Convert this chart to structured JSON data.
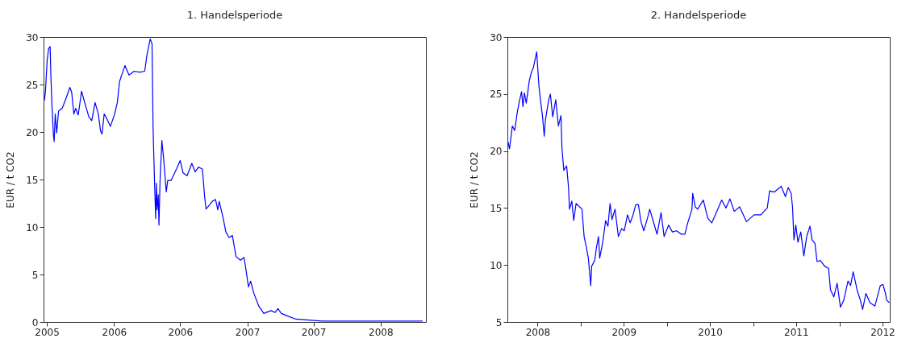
{
  "chart_data": [
    {
      "type": "line",
      "title": "1. Handelsperiode",
      "ylabel": "EUR / t CO2",
      "x": [
        "2005-06-24",
        "2005-06-27",
        "2005-07-02",
        "2005-07-06",
        "2005-07-10",
        "2005-07-12",
        "2005-07-15",
        "2005-07-19",
        "2005-07-21",
        "2005-07-24",
        "2005-07-28",
        "2005-08-02",
        "2005-08-12",
        "2005-08-23",
        "2005-09-02",
        "2005-09-07",
        "2005-09-13",
        "2005-09-18",
        "2005-09-25",
        "2005-10-04",
        "2005-10-12",
        "2005-10-24",
        "2005-11-01",
        "2005-11-10",
        "2005-11-19",
        "2005-11-25",
        "2005-11-29",
        "2005-12-05",
        "2005-12-11",
        "2005-12-22",
        "2006-01-02",
        "2006-01-10",
        "2006-01-16",
        "2006-01-21",
        "2006-01-31",
        "2006-02-11",
        "2006-02-25",
        "2006-03-12",
        "2006-03-26",
        "2006-04-01",
        "2006-04-10",
        "2006-04-15",
        "2006-04-18",
        "2006-04-22",
        "2006-04-25",
        "2006-04-27",
        "2006-04-29",
        "2006-05-02",
        "2006-05-04",
        "2006-05-07",
        "2006-05-12",
        "2006-05-17",
        "2006-05-24",
        "2006-05-28",
        "2006-06-06",
        "2006-06-21",
        "2006-07-01",
        "2006-07-09",
        "2006-07-20",
        "2006-08-02",
        "2006-08-11",
        "2006-08-20",
        "2006-08-31",
        "2006-09-06",
        "2006-09-10",
        "2006-09-19",
        "2006-09-27",
        "2006-10-06",
        "2006-10-12",
        "2006-10-16",
        "2006-10-27",
        "2006-11-03",
        "2006-11-12",
        "2006-11-21",
        "2006-12-01",
        "2006-12-13",
        "2006-12-23",
        "2006-12-29",
        "2007-01-04",
        "2007-01-10",
        "2007-01-19",
        "2007-02-01",
        "2007-02-15",
        "2007-03-07",
        "2007-03-18",
        "2007-03-26",
        "2007-04-04",
        "2007-04-23",
        "2007-05-14",
        "2007-06-19",
        "2007-07-25",
        "2008-04-25"
      ],
      "series": [
        {
          "color": "#0000ff",
          "values": [
            23.3,
            24.2,
            27.6,
            28.8,
            29.0,
            25.9,
            22.8,
            19.7,
            19.0,
            21.9,
            19.9,
            22.2,
            22.5,
            23.6,
            24.7,
            24.2,
            21.9,
            22.5,
            21.8,
            24.3,
            23.2,
            21.6,
            21.2,
            23.1,
            21.9,
            20.1,
            19.8,
            21.9,
            21.5,
            20.6,
            21.8,
            23.1,
            25.3,
            25.9,
            27.0,
            26.0,
            26.4,
            26.3,
            26.4,
            28.1,
            29.8,
            29.3,
            20.2,
            14.6,
            10.9,
            14.6,
            11.8,
            13.4,
            10.2,
            14.9,
            19.1,
            17.1,
            13.7,
            14.9,
            14.9,
            16.1,
            17.0,
            15.7,
            15.4,
            16.7,
            15.8,
            16.3,
            16.1,
            13.2,
            11.9,
            12.3,
            12.7,
            12.9,
            11.8,
            12.7,
            10.9,
            9.5,
            8.9,
            9.1,
            6.9,
            6.5,
            6.8,
            5.3,
            3.7,
            4.3,
            3.0,
            1.7,
            0.9,
            1.2,
            1.0,
            1.4,
            0.9,
            0.6,
            0.3,
            0.2,
            0.1,
            0.1
          ]
        }
      ],
      "xlim": [
        "2005-06-22",
        "2008-05-04"
      ],
      "xticks": [
        {
          "value": "2005-07-01",
          "label": "2005"
        },
        {
          "value": "2006-01-01",
          "label": "2006"
        },
        {
          "value": "2006-07-01",
          "label": "2006"
        },
        {
          "value": "2007-01-01",
          "label": "2007"
        },
        {
          "value": "2007-07-01",
          "label": "2007"
        },
        {
          "value": "2008-01-01",
          "label": "2008"
        }
      ],
      "ylim": [
        0,
        30
      ],
      "yticks": [
        0,
        5,
        10,
        15,
        20,
        25,
        30
      ]
    },
    {
      "type": "line",
      "title": "2. Handelsperiode",
      "ylabel": "EUR / t CO2",
      "x": [
        "2008-02-27",
        "2008-03-04",
        "2008-03-16",
        "2008-03-26",
        "2008-04-06",
        "2008-04-15",
        "2008-04-24",
        "2008-04-30",
        "2008-05-06",
        "2008-05-14",
        "2008-05-27",
        "2008-06-06",
        "2008-06-13",
        "2008-06-27",
        "2008-07-07",
        "2008-07-13",
        "2008-07-22",
        "2008-07-29",
        "2008-08-03",
        "2008-08-17",
        "2008-08-24",
        "2008-09-03",
        "2008-09-16",
        "2008-09-27",
        "2008-10-08",
        "2008-10-12",
        "2008-10-20",
        "2008-11-01",
        "2008-11-09",
        "2008-11-13",
        "2008-11-23",
        "2008-12-01",
        "2008-12-11",
        "2009-01-05",
        "2009-01-14",
        "2009-01-24",
        "2009-02-01",
        "2009-02-11",
        "2009-02-15",
        "2009-02-28",
        "2009-03-07",
        "2009-03-16",
        "2009-03-21",
        "2009-04-03",
        "2009-04-15",
        "2009-04-25",
        "2009-05-04",
        "2009-05-12",
        "2009-05-25",
        "2009-06-08",
        "2009-06-22",
        "2009-07-03",
        "2009-07-17",
        "2009-07-28",
        "2009-08-08",
        "2009-08-21",
        "2009-09-01",
        "2009-09-12",
        "2009-09-24",
        "2009-10-12",
        "2009-10-19",
        "2009-11-02",
        "2009-11-19",
        "2009-12-06",
        "2009-12-19",
        "2010-01-07",
        "2010-01-23",
        "2010-02-10",
        "2010-03-02",
        "2010-03-17",
        "2010-03-29",
        "2010-04-16",
        "2010-04-19",
        "2010-04-30",
        "2010-05-10",
        "2010-06-03",
        "2010-06-22",
        "2010-07-09",
        "2010-07-26",
        "2010-08-20",
        "2010-09-07",
        "2010-09-24",
        "2010-10-12",
        "2010-11-04",
        "2010-12-03",
        "2011-01-04",
        "2011-02-02",
        "2011-03-01",
        "2011-03-11",
        "2011-03-31",
        "2011-04-29",
        "2011-05-17",
        "2011-05-29",
        "2011-06-10",
        "2011-06-16",
        "2011-06-22",
        "2011-06-30",
        "2011-07-09",
        "2011-07-21",
        "2011-08-03",
        "2011-08-15",
        "2011-08-29",
        "2011-09-07",
        "2011-09-19",
        "2011-09-28",
        "2011-10-12",
        "2011-10-30",
        "2011-11-16",
        "2011-11-24",
        "2011-12-08",
        "2011-12-22",
        "2012-01-05",
        "2012-01-19",
        "2012-02-06",
        "2012-02-17",
        "2012-02-28",
        "2012-03-17",
        "2012-03-28",
        "2012-04-08",
        "2012-04-22",
        "2012-05-09",
        "2012-05-30",
        "2012-06-22",
        "2012-07-03",
        "2012-07-14",
        "2012-07-19",
        "2012-07-31"
      ],
      "series": [
        {
          "color": "#0000ff",
          "values": [
            20.8,
            20.2,
            22.2,
            21.8,
            23.4,
            24.4,
            25.2,
            23.9,
            25.1,
            24.2,
            26.2,
            27.0,
            27.3,
            28.7,
            25.6,
            24.5,
            23.0,
            21.3,
            22.7,
            24.5,
            25.0,
            23.0,
            24.5,
            22.2,
            23.1,
            20.3,
            18.3,
            18.7,
            16.8,
            14.9,
            15.6,
            13.9,
            15.4,
            14.9,
            12.5,
            11.5,
            10.6,
            8.2,
            9.9,
            10.4,
            11.5,
            12.5,
            10.6,
            12.0,
            13.9,
            13.4,
            15.4,
            14.0,
            14.9,
            12.5,
            13.2,
            13.0,
            14.4,
            13.7,
            14.3,
            15.3,
            15.3,
            13.8,
            13.0,
            14.3,
            14.9,
            13.9,
            12.7,
            14.6,
            12.5,
            13.5,
            12.9,
            13.0,
            12.7,
            12.7,
            13.7,
            14.9,
            16.3,
            15.1,
            14.9,
            15.7,
            14.1,
            13.7,
            14.5,
            15.7,
            15.0,
            15.8,
            14.7,
            15.1,
            13.8,
            14.4,
            14.4,
            15.0,
            16.5,
            16.4,
            16.9,
            16.0,
            16.8,
            16.3,
            15.1,
            12.2,
            13.5,
            12.0,
            12.9,
            10.8,
            12.5,
            13.4,
            12.2,
            11.9,
            10.3,
            10.4,
            9.9,
            9.7,
            7.8,
            7.2,
            8.4,
            6.3,
            6.9,
            8.6,
            8.2,
            9.4,
            7.7,
            7.0,
            6.1,
            7.5,
            6.7,
            6.4,
            8.2,
            8.3,
            7.5,
            6.9,
            6.7
          ]
        }
      ],
      "xlim": [
        "2008-02-24",
        "2012-08-01"
      ],
      "xticks": [
        {
          "value": "2008-07-01",
          "label": "2008"
        },
        {
          "value": "2009-01-01",
          "label": null
        },
        {
          "value": "2009-07-01",
          "label": "2009"
        },
        {
          "value": "2010-01-01",
          "label": null
        },
        {
          "value": "2010-07-01",
          "label": "2010"
        },
        {
          "value": "2011-01-01",
          "label": null
        },
        {
          "value": "2011-07-01",
          "label": "2011"
        },
        {
          "value": "2012-01-01",
          "label": null
        },
        {
          "value": "2012-07-01",
          "label": "2012"
        }
      ],
      "ylim": [
        5,
        30
      ],
      "yticks": [
        5,
        10,
        15,
        20,
        25,
        30
      ]
    }
  ]
}
